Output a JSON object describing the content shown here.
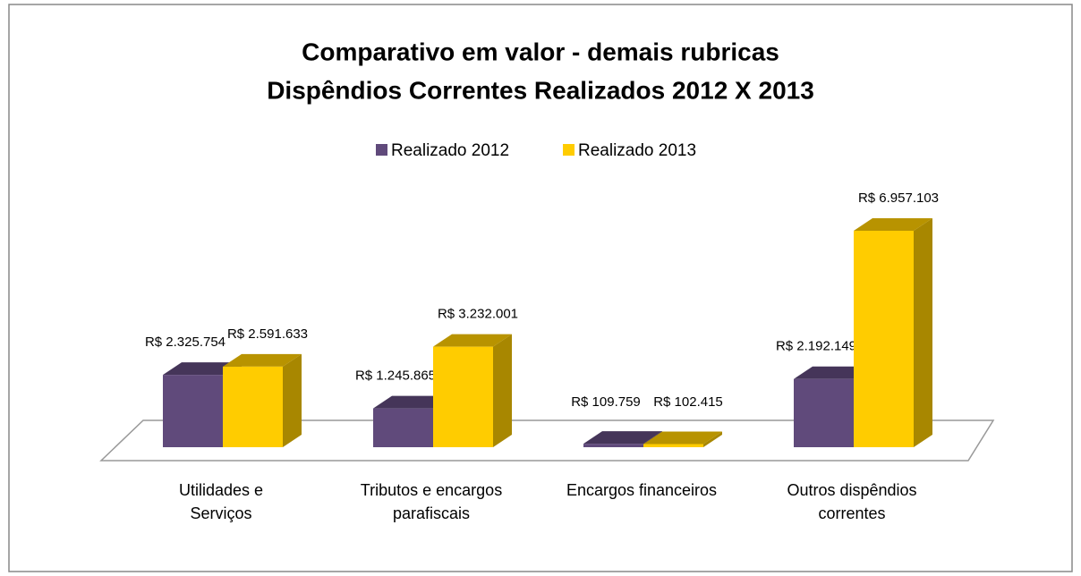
{
  "chart_data": {
    "type": "bar3d",
    "title": [
      "Comparativo em valor - demais rubricas",
      "Dispêndios Correntes Realizados  2012 X 2013"
    ],
    "categories": [
      "Utilidades e Serviços",
      "Tributos e encargos parafiscais",
      "Encargos financeiros",
      "Outros dispêndios correntes"
    ],
    "series": [
      {
        "name": "Realizado 2012",
        "color": "#604a7b",
        "values": [
          2325754,
          1245865,
          109759,
          2192149
        ],
        "value_labels": [
          "R$ 2.325.754",
          "R$ 1.245.865",
          "R$ 109.759",
          "R$ 2.192.149"
        ]
      },
      {
        "name": "Realizado 2013",
        "color": "#ffcc00",
        "values": [
          2591633,
          3232001,
          102415,
          6957103
        ],
        "value_labels": [
          "R$ 2.591.633",
          "R$ 3.232.001",
          "R$ 102.415",
          "R$ 6.957.103"
        ]
      }
    ],
    "legend": "top"
  }
}
